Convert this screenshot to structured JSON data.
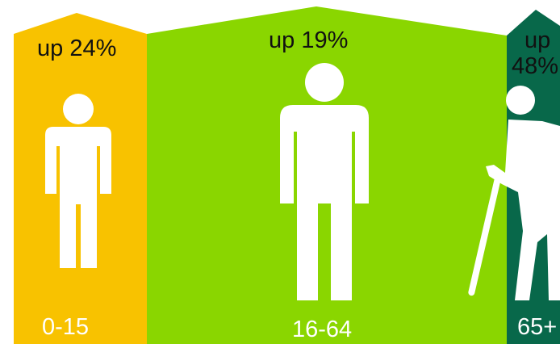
{
  "groups": [
    {
      "id": "children",
      "change_label": "up 24%",
      "age_label": "0-15",
      "color": "#f8c200",
      "figure_icon": "person-icon"
    },
    {
      "id": "working-age",
      "change_label": "up 19%",
      "age_label": "16-64",
      "color": "#8ad600",
      "figure_icon": "person-icon"
    },
    {
      "id": "elderly",
      "change_label_line1": "up",
      "change_label_line2": "48%",
      "age_label": "65+",
      "color": "#08684a",
      "figure_icon": "elderly-person-with-cane-icon"
    }
  ],
  "colors": {
    "figure": "#ffffff",
    "text_dark": "#111111",
    "text_light": "#ffffff"
  }
}
